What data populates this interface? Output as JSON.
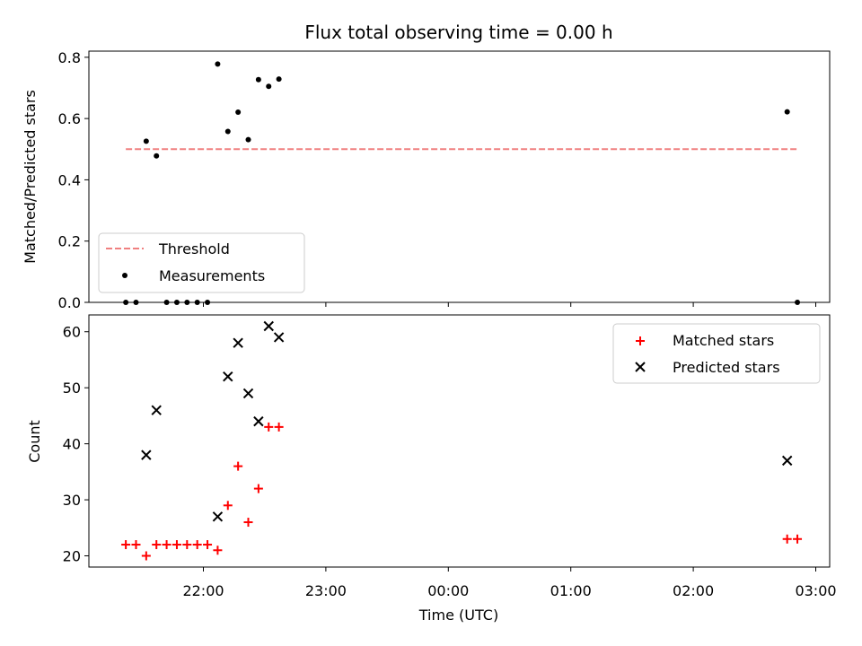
{
  "chart_data": [
    {
      "type": "scatter",
      "title": "Flux total observing time = 0.00 h",
      "xlabel": "",
      "ylabel": "Matched/Predicted stars",
      "ylim": [
        0,
        0.82
      ],
      "yticks": [
        "0.0",
        "0.2",
        "0.4",
        "0.6",
        "0.8"
      ],
      "legend_position": "lower-left",
      "threshold": {
        "name": "Threshold",
        "value": 0.5,
        "x": [
          "21:22",
          "22:50",
          "02:51"
        ],
        "color": "#f08080"
      },
      "series": [
        {
          "name": "Measurements",
          "color": "#000000",
          "points": [
            [
              "21:22",
              0.0
            ],
            [
              "21:27",
              0.0
            ],
            [
              "21:32",
              0.526
            ],
            [
              "21:37",
              0.478
            ],
            [
              "21:42",
              0.0
            ],
            [
              "21:47",
              0.0
            ],
            [
              "21:52",
              0.0
            ],
            [
              "21:57",
              0.0
            ],
            [
              "22:02",
              0.0
            ],
            [
              "22:07",
              0.778
            ],
            [
              "22:12",
              0.558
            ],
            [
              "22:17",
              0.621
            ],
            [
              "22:22",
              0.531
            ],
            [
              "22:27",
              0.727
            ],
            [
              "22:32",
              0.705
            ],
            [
              "22:37",
              0.729
            ],
            [
              "02:46",
              0.622
            ],
            [
              "02:51",
              0.0
            ]
          ]
        }
      ]
    },
    {
      "type": "scatter",
      "xlabel": "Time (UTC)",
      "ylabel": "Count",
      "ylim": [
        18,
        63
      ],
      "yticks": [
        "20",
        "30",
        "40",
        "50",
        "60"
      ],
      "xticks": [
        "22:00",
        "23:00",
        "00:00",
        "01:00",
        "02:00",
        "03:00"
      ],
      "legend_position": "upper-right",
      "series": [
        {
          "name": "Matched stars",
          "marker": "plus",
          "color": "#ff0000",
          "points": [
            [
              "21:22",
              22
            ],
            [
              "21:27",
              22
            ],
            [
              "21:32",
              20
            ],
            [
              "21:37",
              22
            ],
            [
              "21:42",
              22
            ],
            [
              "21:47",
              22
            ],
            [
              "21:52",
              22
            ],
            [
              "21:57",
              22
            ],
            [
              "22:02",
              22
            ],
            [
              "22:07",
              21
            ],
            [
              "22:12",
              29
            ],
            [
              "22:17",
              36
            ],
            [
              "22:22",
              26
            ],
            [
              "22:27",
              32
            ],
            [
              "22:32",
              43
            ],
            [
              "22:37",
              43
            ],
            [
              "02:46",
              23
            ],
            [
              "02:51",
              23
            ]
          ]
        },
        {
          "name": "Predicted stars",
          "marker": "x",
          "color": "#000000",
          "points": [
            [
              "21:32",
              38
            ],
            [
              "21:37",
              46
            ],
            [
              "22:07",
              27
            ],
            [
              "22:12",
              52
            ],
            [
              "22:17",
              58
            ],
            [
              "22:22",
              49
            ],
            [
              "22:27",
              44
            ],
            [
              "22:32",
              61
            ],
            [
              "22:37",
              59
            ],
            [
              "02:46",
              37
            ]
          ]
        }
      ]
    }
  ]
}
